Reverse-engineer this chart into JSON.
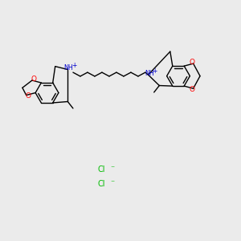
{
  "background_color": "#ebebeb",
  "bond_color": "#000000",
  "oxygen_color": "#ff0000",
  "nitrogen_color": "#0000cd",
  "chlorine_color": "#00bb00",
  "figsize": [
    3.0,
    3.0
  ],
  "dpi": 100,
  "lw": 1.0,
  "ring_r": 0.048,
  "cl1": [
    0.42,
    0.295
  ],
  "cl2": [
    0.42,
    0.235
  ]
}
